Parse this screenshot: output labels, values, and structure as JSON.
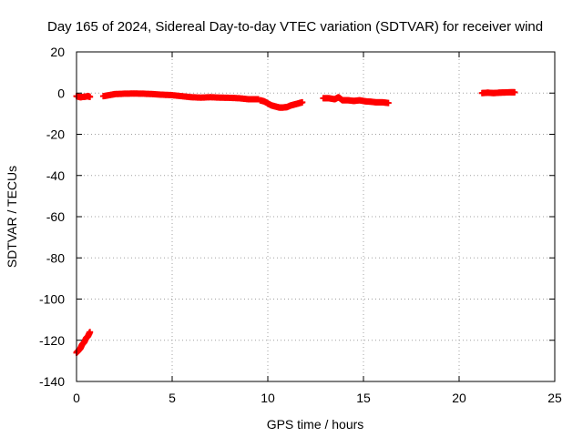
{
  "chart_data": {
    "type": "scatter",
    "title": "Day 165 of 2024, Sidereal Day-to-day VTEC variation (SDTVAR) for receiver wind",
    "xlabel": "GPS time / hours",
    "ylabel": "SDTVAR / TECUs",
    "xlim": [
      0,
      25
    ],
    "ylim": [
      -140,
      20
    ],
    "xticks": [
      "0",
      "5",
      "10",
      "15",
      "20",
      "25"
    ],
    "yticks": [
      "-140",
      "-120",
      "-100",
      "-80",
      "-60",
      "-40",
      "-20",
      "0",
      "20"
    ],
    "grid": true,
    "legend": "none",
    "marker_color": "#ff0000",
    "series": [
      {
        "segments": [
          {
            "x": [
              0.0,
              0.2,
              0.4,
              0.6,
              0.7
            ],
            "y": [
              -1.5,
              -2.0,
              -1.8,
              -1.5,
              -1.8
            ]
          },
          {
            "x": [
              0.0,
              0.1,
              0.2,
              0.3,
              0.4,
              0.5,
              0.6,
              0.7
            ],
            "y": [
              -126,
              -125,
              -124,
              -122,
              -121,
              -119,
              -118,
              -116
            ]
          },
          {
            "x": [
              1.4,
              1.7,
              2.0,
              2.5,
              3.0,
              3.5,
              4.0,
              4.5,
              5.0,
              5.5,
              6.0,
              6.5,
              7.0,
              7.5,
              8.0,
              8.5,
              9.0,
              9.5
            ],
            "y": [
              -1.5,
              -1.0,
              -0.5,
              -0.3,
              -0.2,
              -0.3,
              -0.5,
              -0.8,
              -1.0,
              -1.5,
              -2.0,
              -2.2,
              -2.0,
              -2.2,
              -2.3,
              -2.5,
              -3.0,
              -3.0
            ]
          },
          {
            "x": [
              9.6,
              9.8,
              10.0,
              10.2,
              10.4,
              10.6,
              10.8,
              11.0,
              11.2,
              11.4,
              11.6,
              11.8
            ],
            "y": [
              -3.5,
              -4.0,
              -5.0,
              -6.0,
              -6.5,
              -7.0,
              -7.0,
              -6.8,
              -6.0,
              -5.5,
              -5.0,
              -4.5
            ]
          },
          {
            "x": [
              12.9,
              13.2,
              13.5,
              13.7,
              13.9,
              14.2,
              14.5,
              14.8,
              15.1,
              15.4,
              15.7,
              16.0,
              16.3
            ],
            "y": [
              -2.5,
              -2.5,
              -3.0,
              -2.0,
              -3.5,
              -3.5,
              -3.8,
              -3.5,
              -4.0,
              -4.2,
              -4.5,
              -4.5,
              -4.8
            ]
          },
          {
            "x": [
              21.2,
              21.5,
              21.8,
              22.1,
              22.4,
              22.7,
              22.9
            ],
            "y": [
              0.0,
              0.2,
              0.0,
              0.2,
              0.3,
              0.4,
              0.4
            ]
          }
        ]
      }
    ]
  }
}
